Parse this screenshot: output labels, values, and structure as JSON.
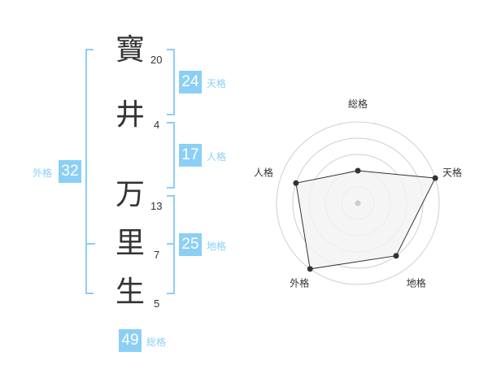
{
  "name": {
    "chars": [
      {
        "char": "寶",
        "strokes": "20"
      },
      {
        "char": "井",
        "strokes": "4"
      },
      {
        "char": "万",
        "strokes": "13"
      },
      {
        "char": "里",
        "strokes": "7"
      },
      {
        "char": "生",
        "strokes": "5"
      }
    ]
  },
  "fortunes": {
    "tenkaku": {
      "value": "24",
      "label": "天格"
    },
    "jinkaku": {
      "value": "17",
      "label": "人格"
    },
    "chikaku": {
      "value": "25",
      "label": "地格"
    },
    "gaikaku": {
      "value": "32",
      "label": "外格"
    },
    "soukaku": {
      "value": "49",
      "label": "総格"
    }
  },
  "colors": {
    "accent": "#8ccff5",
    "polygon_fill": "#f2f2f2",
    "line": "#333333",
    "ring": "#d0d0d0"
  },
  "chart_data": {
    "type": "radar",
    "axes": [
      "総格",
      "天格",
      "地格",
      "外格",
      "人格"
    ],
    "values": [
      2,
      5,
      4,
      5,
      4
    ],
    "range": [
      0,
      5
    ],
    "rings": 5
  }
}
